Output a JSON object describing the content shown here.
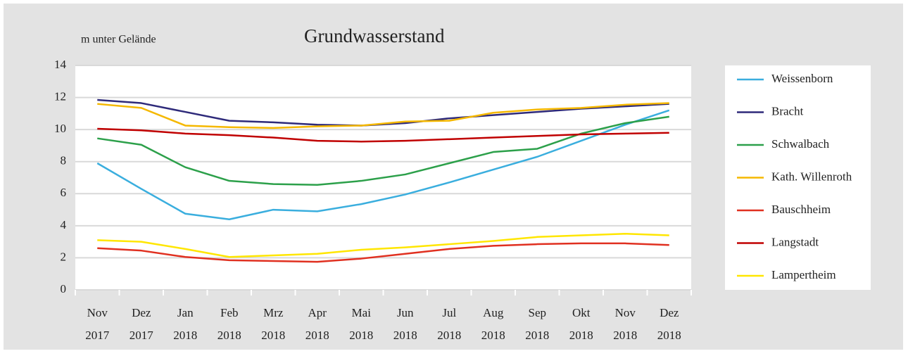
{
  "chart_data": {
    "type": "line",
    "title": "Grundwasserstand",
    "y_label": "m unter Gelände",
    "categories": [
      [
        "Nov",
        "2017"
      ],
      [
        "Dez",
        "2017"
      ],
      [
        "Jan",
        "2018"
      ],
      [
        "Feb",
        "2018"
      ],
      [
        "Mrz",
        "2018"
      ],
      [
        "Apr",
        "2018"
      ],
      [
        "Mai",
        "2018"
      ],
      [
        "Jun",
        "2018"
      ],
      [
        "Jul",
        "2018"
      ],
      [
        "Aug",
        "2018"
      ],
      [
        "Sep",
        "2018"
      ],
      [
        "Okt",
        "2018"
      ],
      [
        "Nov",
        "2018"
      ],
      [
        "Dez",
        "2018"
      ]
    ],
    "series": [
      {
        "name": "Weissenborn",
        "color": "#3aaede",
        "values": [
          7.9,
          6.3,
          4.75,
          4.4,
          5.0,
          4.9,
          5.35,
          5.95,
          6.7,
          7.5,
          8.3,
          9.3,
          10.3,
          11.2
        ]
      },
      {
        "name": "Bracht",
        "color": "#2e2a7a",
        "values": [
          11.85,
          11.65,
          11.1,
          10.55,
          10.45,
          10.3,
          10.25,
          10.4,
          10.7,
          10.9,
          11.1,
          11.3,
          11.45,
          11.6
        ]
      },
      {
        "name": "Schwalbach",
        "color": "#2ca04a",
        "values": [
          9.45,
          9.05,
          7.65,
          6.8,
          6.6,
          6.55,
          6.8,
          7.2,
          7.9,
          8.6,
          8.8,
          9.75,
          10.4,
          10.8
        ]
      },
      {
        "name": "Kath. Willenroth",
        "color": "#f5b800",
        "values": [
          11.6,
          11.35,
          10.25,
          10.15,
          10.1,
          10.2,
          10.25,
          10.5,
          10.55,
          11.05,
          11.25,
          11.35,
          11.55,
          11.65
        ]
      },
      {
        "name": "Bauschheim",
        "color": "#e03020",
        "values": [
          2.6,
          2.45,
          2.05,
          1.85,
          1.8,
          1.75,
          1.95,
          2.25,
          2.55,
          2.75,
          2.85,
          2.9,
          2.9,
          2.8
        ]
      },
      {
        "name": "Langstadt",
        "color": "#c00000",
        "values": [
          10.05,
          9.95,
          9.75,
          9.65,
          9.5,
          9.3,
          9.25,
          9.3,
          9.4,
          9.5,
          9.6,
          9.7,
          9.75,
          9.8
        ]
      },
      {
        "name": "Lampertheim",
        "color": "#ffe600",
        "values": [
          3.1,
          3.0,
          2.55,
          2.05,
          2.15,
          2.25,
          2.5,
          2.65,
          2.85,
          3.05,
          3.3,
          3.4,
          3.5,
          3.4
        ]
      }
    ],
    "ylim": [
      0,
      14
    ],
    "yticks": [
      0,
      2,
      4,
      6,
      8,
      10,
      12,
      14
    ],
    "grid": true,
    "legend": "right"
  }
}
